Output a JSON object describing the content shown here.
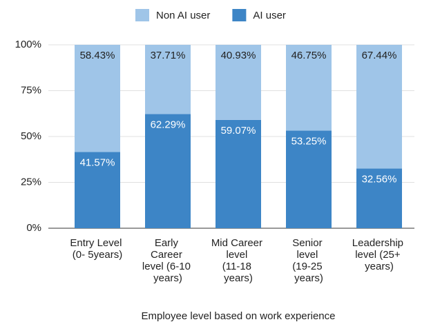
{
  "chart_data": {
    "type": "stacked_bar",
    "x_label": "Employee level based on work experience",
    "categories": [
      "Entry Level (0- 5years)",
      "Early Career level (6-10 years)",
      "Mid Career level (11-18 years)",
      "Senior level (19-25 years)",
      "Leadership level (25+ years)"
    ],
    "series": [
      {
        "name": "AI user",
        "color": "#3d85c6",
        "values": [
          41.57,
          62.29,
          59.07,
          53.25,
          32.56
        ],
        "value_labels": [
          "41.57%",
          "62.29%",
          "59.07%",
          "53.25%",
          "32.56%"
        ]
      },
      {
        "name": "Non AI user",
        "color": "#9fc5e8",
        "values": [
          58.43,
          37.71,
          40.93,
          46.75,
          67.44
        ],
        "value_labels": [
          "58.43%",
          "37.71%",
          "40.93%",
          "46.75%",
          "67.44%"
        ]
      }
    ],
    "ylim": [
      0,
      100
    ],
    "yticks": [
      {
        "value": 0,
        "label": "0%"
      },
      {
        "value": 25,
        "label": "25%"
      },
      {
        "value": 50,
        "label": "50%"
      },
      {
        "value": 75,
        "label": "75%"
      },
      {
        "value": 100,
        "label": "100%"
      }
    ],
    "grid": true
  }
}
